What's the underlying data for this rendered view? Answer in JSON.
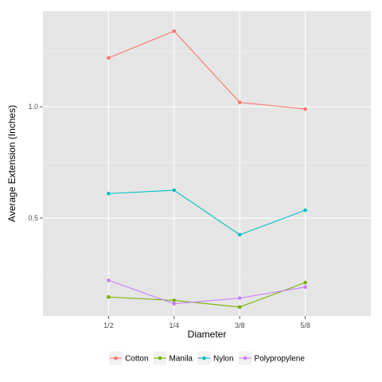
{
  "chart_data": {
    "type": "line",
    "title": "",
    "xlabel": "Diameter",
    "ylabel": "Average Extension (Inches)",
    "categories": [
      "1/2",
      "1/4",
      "3/8",
      "5/8"
    ],
    "ylim": [
      0.06,
      1.43
    ],
    "yticks": [
      0.5,
      1.0
    ],
    "ytick_labels": [
      "0.5",
      "1.0"
    ],
    "grid": true,
    "legend_position": "bottom",
    "series": [
      {
        "name": "Cotton",
        "color": "#F8766D",
        "values": [
          1.22,
          1.34,
          1.02,
          0.99
        ]
      },
      {
        "name": "Manila",
        "color": "#7CAE00",
        "values": [
          0.145,
          0.13,
          0.1,
          0.21
        ]
      },
      {
        "name": "Nylon",
        "color": "#00BFC4",
        "values": [
          0.61,
          0.625,
          0.425,
          0.535
        ]
      },
      {
        "name": "Polypropylene",
        "color": "#C77CFF",
        "values": [
          0.22,
          0.115,
          0.14,
          0.19
        ]
      }
    ]
  }
}
